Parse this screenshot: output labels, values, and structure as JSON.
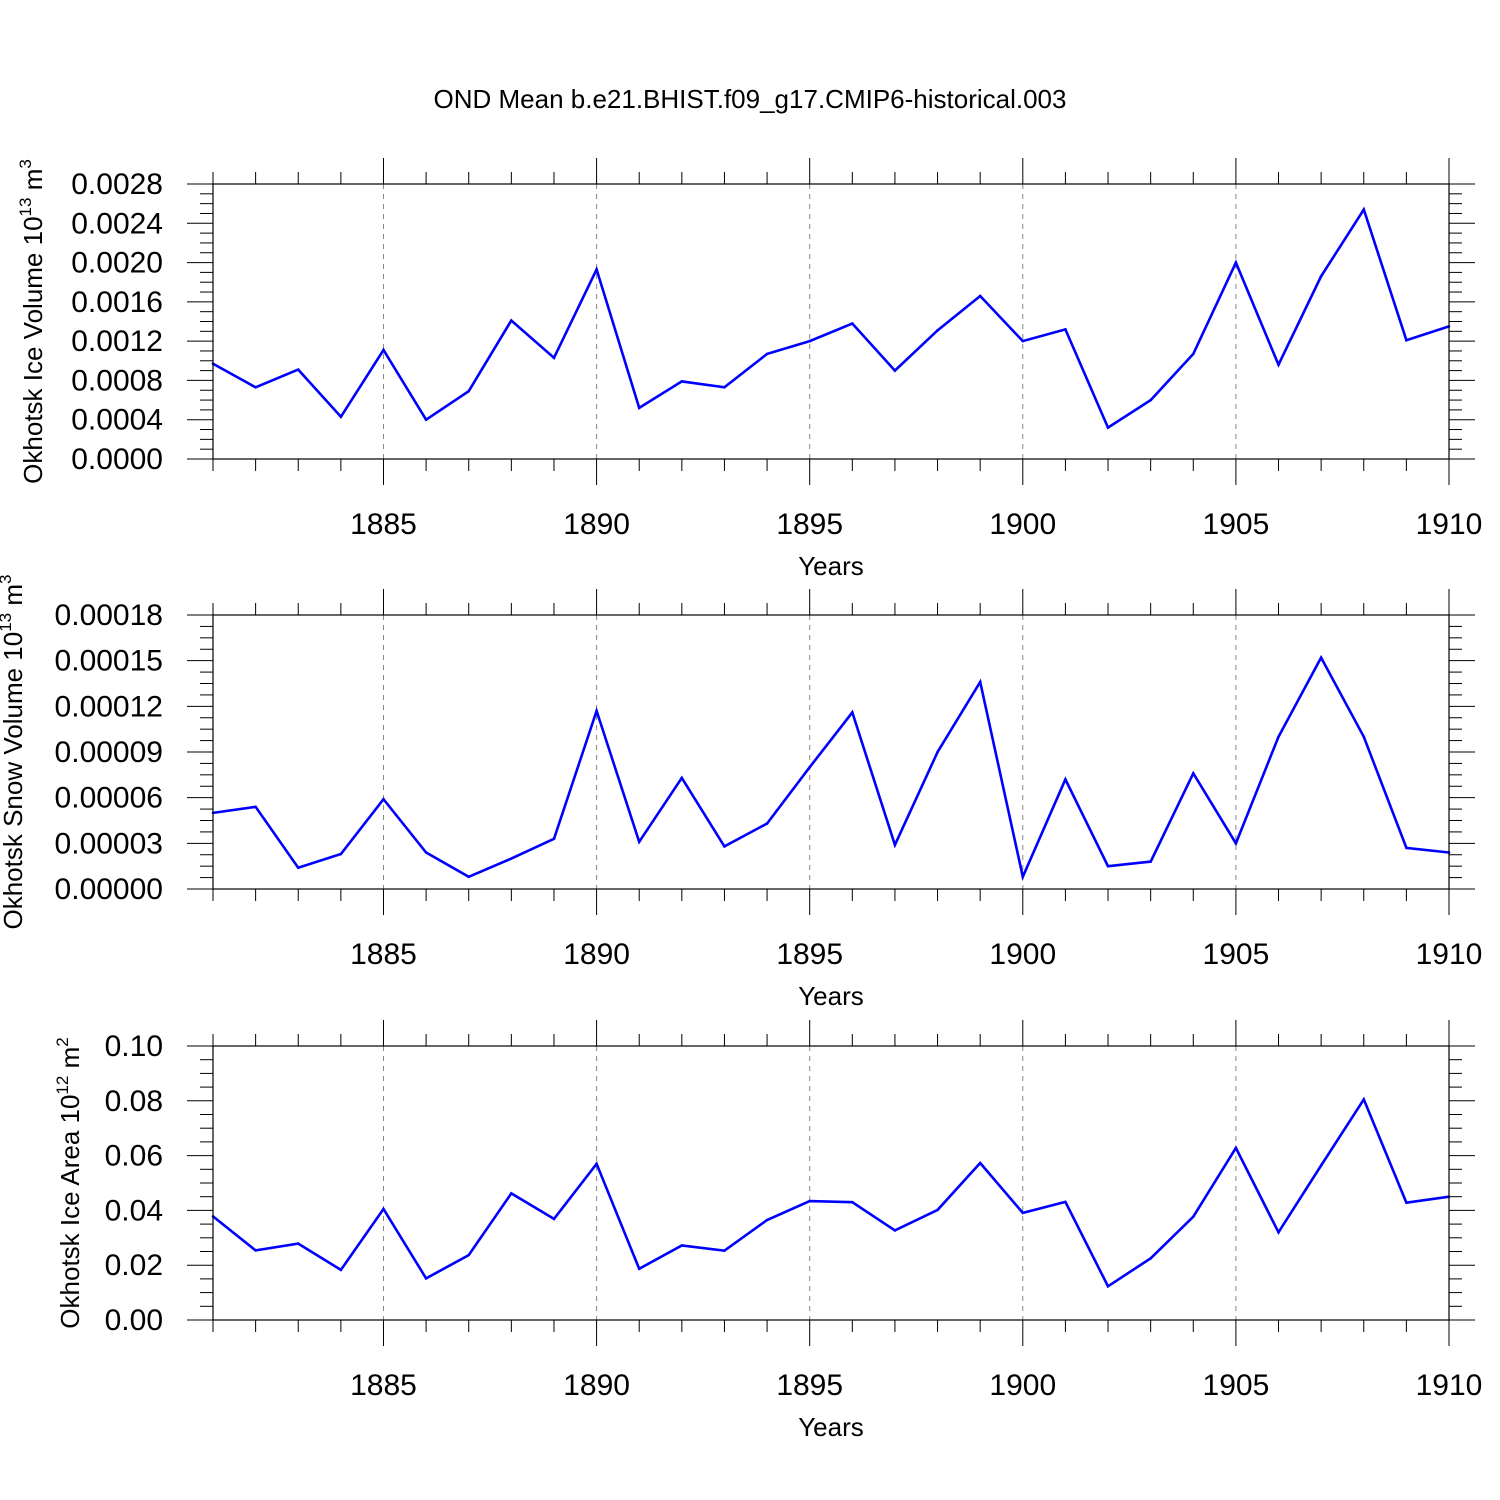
{
  "title": "OND Mean b.e21.BHIST.f09_g17.CMIP6-historical.003",
  "line_color": "#0000ff",
  "chart_data": [
    {
      "type": "line",
      "xlabel": "Years",
      "ylabel_main": "Okhotsk Ice Volume 10",
      "ylabel_sup": "13",
      "ylabel_unit": "m",
      "ylabel_unit_sup": "3",
      "xlim": [
        1881,
        1910
      ],
      "ylim": [
        0,
        0.0028
      ],
      "yticks": [
        0,
        0.0004,
        0.0008,
        0.0012,
        0.0016,
        0.002,
        0.0024,
        0.0028
      ],
      "ytick_labels": [
        "0.0000",
        "0.0004",
        "0.0008",
        "0.0012",
        "0.0016",
        "0.0020",
        "0.0024",
        "0.0028"
      ],
      "xticks": [
        1885,
        1890,
        1895,
        1900,
        1905,
        1910
      ],
      "xtick_labels": [
        "1885",
        "1890",
        "1895",
        "1900",
        "1905",
        "1910"
      ],
      "x": [
        1881,
        1882,
        1883,
        1884,
        1885,
        1886,
        1887,
        1888,
        1889,
        1890,
        1891,
        1892,
        1893,
        1894,
        1895,
        1896,
        1897,
        1898,
        1899,
        1900,
        1901,
        1902,
        1903,
        1904,
        1905,
        1906,
        1907,
        1908,
        1909,
        1910
      ],
      "y": [
        0.00097,
        0.00073,
        0.00091,
        0.00043,
        0.00111,
        0.0004,
        0.00069,
        0.00141,
        0.00103,
        0.00193,
        0.00052,
        0.00079,
        0.00073,
        0.00107,
        0.0012,
        0.00138,
        0.0009,
        0.00131,
        0.00166,
        0.0012,
        0.00132,
        0.00032,
        0.0006,
        0.00107,
        0.002,
        0.00096,
        0.00186,
        0.00254,
        0.00121,
        0.00135
      ]
    },
    {
      "type": "line",
      "xlabel": "Years",
      "ylabel_main": "Okhotsk Snow Volume 10",
      "ylabel_sup": "13",
      "ylabel_unit": "m",
      "ylabel_unit_sup": "3",
      "xlim": [
        1881,
        1910
      ],
      "ylim": [
        0,
        0.00018
      ],
      "yticks": [
        0,
        3e-05,
        6e-05,
        9e-05,
        0.00012,
        0.00015,
        0.00018
      ],
      "ytick_labels": [
        "0.00000",
        "0.00003",
        "0.00006",
        "0.00009",
        "0.00012",
        "0.00015",
        "0.00018"
      ],
      "xticks": [
        1885,
        1890,
        1895,
        1900,
        1905,
        1910
      ],
      "xtick_labels": [
        "1885",
        "1890",
        "1895",
        "1900",
        "1905",
        "1910"
      ],
      "x": [
        1881,
        1882,
        1883,
        1884,
        1885,
        1886,
        1887,
        1888,
        1889,
        1890,
        1891,
        1892,
        1893,
        1894,
        1895,
        1896,
        1897,
        1898,
        1899,
        1900,
        1901,
        1902,
        1903,
        1904,
        1905,
        1906,
        1907,
        1908,
        1909,
        1910
      ],
      "y": [
        5e-05,
        5.4e-05,
        1.4e-05,
        2.3e-05,
        5.9e-05,
        2.4e-05,
        8e-06,
        2e-05,
        3.3e-05,
        0.000117,
        3.1e-05,
        7.3e-05,
        2.8e-05,
        4.3e-05,
        8e-05,
        0.000116,
        2.9e-05,
        9e-05,
        0.000136,
        8e-06,
        7.2e-05,
        1.5e-05,
        1.8e-05,
        7.6e-05,
        3e-05,
        0.0001,
        0.000152,
        0.0001,
        2.7e-05,
        2.4e-05
      ]
    },
    {
      "type": "line",
      "xlabel": "Years",
      "ylabel_main": "Okhotsk Ice Area 10",
      "ylabel_sup": "12",
      "ylabel_unit": "m",
      "ylabel_unit_sup": "2",
      "xlim": [
        1881,
        1910
      ],
      "ylim": [
        0,
        0.1
      ],
      "yticks": [
        0,
        0.02,
        0.04,
        0.06,
        0.08,
        0.1
      ],
      "ytick_labels": [
        "0.00",
        "0.02",
        "0.04",
        "0.06",
        "0.08",
        "0.10"
      ],
      "xticks": [
        1885,
        1890,
        1895,
        1900,
        1905,
        1910
      ],
      "xtick_labels": [
        "1885",
        "1890",
        "1895",
        "1900",
        "1905",
        "1910"
      ],
      "x": [
        1881,
        1882,
        1883,
        1884,
        1885,
        1886,
        1887,
        1888,
        1889,
        1890,
        1891,
        1892,
        1893,
        1894,
        1895,
        1896,
        1897,
        1898,
        1899,
        1900,
        1901,
        1902,
        1903,
        1904,
        1905,
        1906,
        1907,
        1908,
        1909,
        1910
      ],
      "y": [
        0.0378,
        0.0254,
        0.0279,
        0.0183,
        0.0405,
        0.0152,
        0.0237,
        0.0462,
        0.0369,
        0.057,
        0.0187,
        0.0272,
        0.0253,
        0.0365,
        0.0434,
        0.043,
        0.0327,
        0.0402,
        0.0573,
        0.0391,
        0.0431,
        0.0123,
        0.0225,
        0.0377,
        0.0628,
        0.032,
        0.0564,
        0.0805,
        0.0428,
        0.045
      ]
    }
  ]
}
